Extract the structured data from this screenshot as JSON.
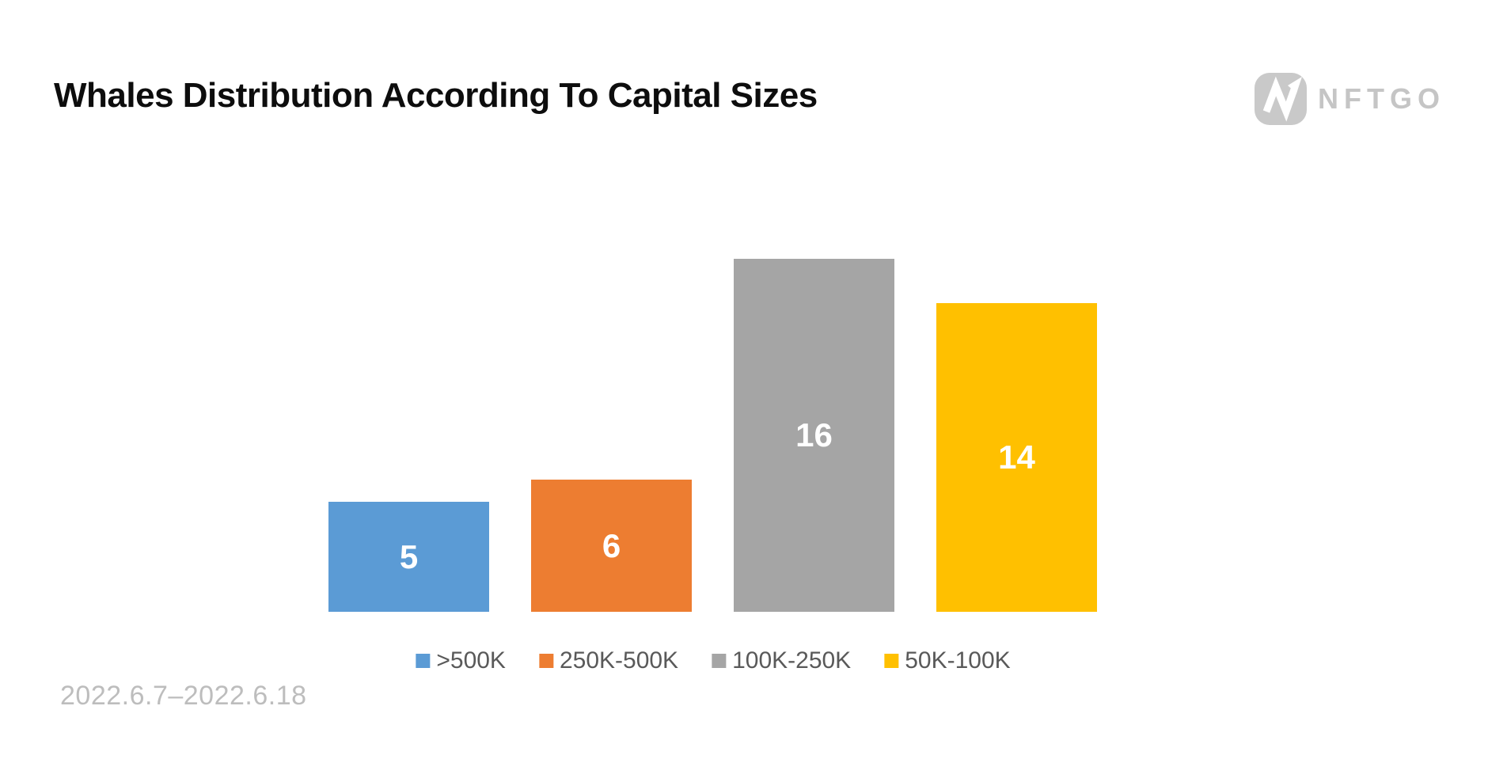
{
  "header": {
    "title": "Whales Distribution According To Capital Sizes",
    "brand": "NFTGO"
  },
  "icons": {
    "logo": "nftgo-n-arrow-icon"
  },
  "chart_data": {
    "type": "bar",
    "title": "Whales Distribution According To Capital Sizes",
    "categories": [
      ">500K",
      "250K-500K",
      "100K-250K",
      "50K-100K"
    ],
    "values": [
      5,
      6,
      16,
      14
    ],
    "data_labels": [
      "5",
      "6",
      "16",
      "14"
    ],
    "series_colors": [
      "#5B9BD5",
      "#ED7D31",
      "#A5A5A5",
      "#FFC000"
    ],
    "xlabel": "",
    "ylabel": "",
    "ylim": [
      0,
      16
    ],
    "grid": false,
    "axes_visible": false,
    "legend_position": "bottom",
    "data_label_color": "#FFFFFF"
  },
  "footer": {
    "date_range": "2022.6.7–2022.6.18"
  },
  "colors": {
    "background": "#FFFFFF",
    "title_text": "#0D0D0D",
    "legend_text": "#595959",
    "date_text": "#BDBDBD",
    "brand_gray": "#C5C5C5"
  }
}
